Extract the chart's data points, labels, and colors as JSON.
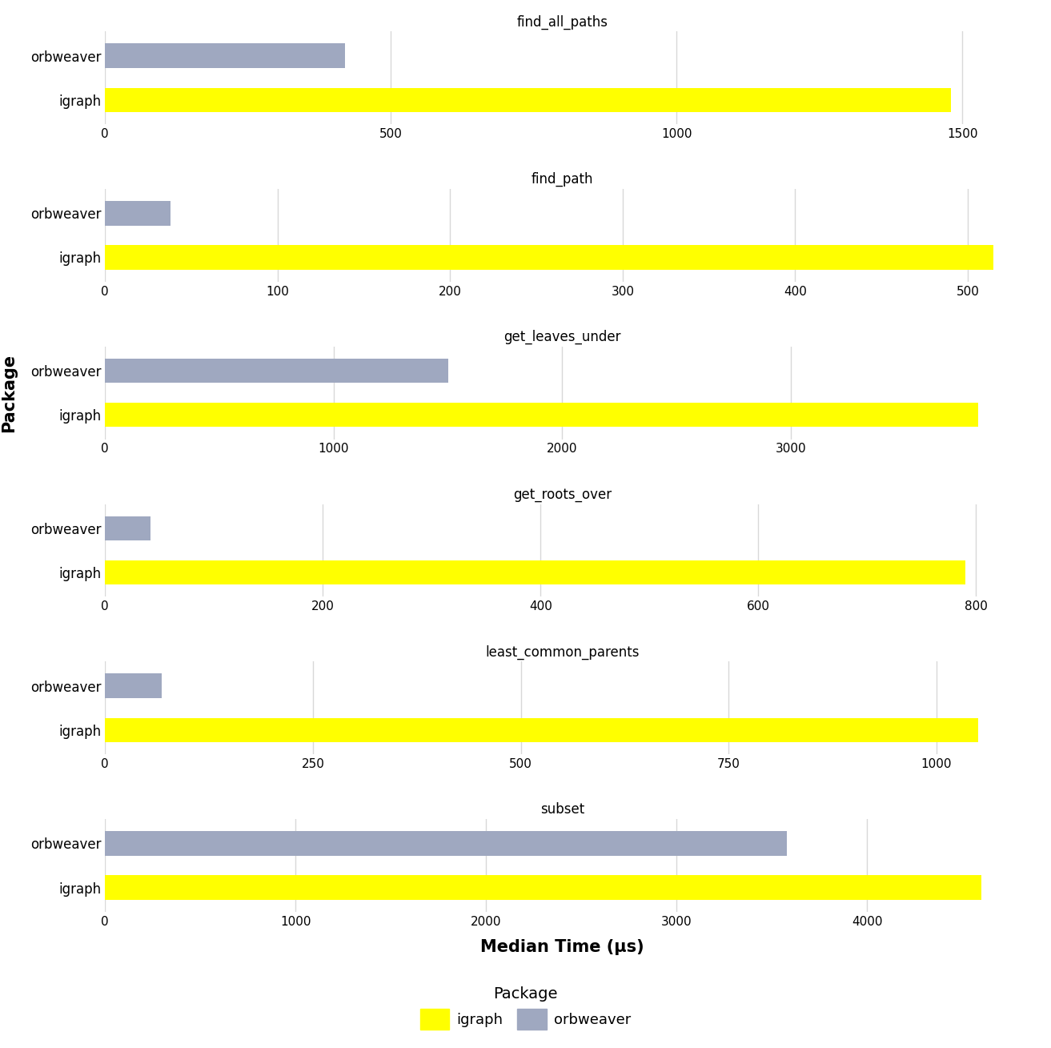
{
  "subplots": [
    {
      "title": "find_all_paths",
      "igraph_val": 1480,
      "orbweaver_val": 420,
      "xlim": [
        0,
        1600
      ],
      "xticks": [
        0,
        500,
        1000,
        1500
      ],
      "xticklabels": [
        "0",
        "500",
        "1000",
        "1500"
      ]
    },
    {
      "title": "find_path",
      "igraph_val": 515,
      "orbweaver_val": 38,
      "xlim": [
        0,
        530
      ],
      "xticks": [
        0,
        100,
        200,
        300,
        400,
        500
      ],
      "xticklabels": [
        "0",
        "100",
        "200",
        "300",
        "400",
        "500"
      ]
    },
    {
      "title": "get_leaves_under",
      "igraph_val": 3820,
      "orbweaver_val": 1500,
      "xlim": [
        0,
        4000
      ],
      "xticks": [
        0,
        1000,
        2000,
        3000
      ],
      "xticklabels": [
        "0",
        "1000",
        "2000",
        "3000"
      ]
    },
    {
      "title": "get_roots_over",
      "igraph_val": 790,
      "orbweaver_val": 42,
      "xlim": [
        0,
        840
      ],
      "xticks": [
        0,
        200,
        400,
        600,
        800
      ],
      "xticklabels": [
        "0",
        "200",
        "400",
        "600",
        "800"
      ]
    },
    {
      "title": "least_common_parents",
      "igraph_val": 1050,
      "orbweaver_val": 68,
      "xlim": [
        0,
        1100
      ],
      "xticks": [
        0,
        250,
        500,
        750,
        1000
      ],
      "xticklabels": [
        "0",
        "250",
        "500",
        "750",
        "1000"
      ]
    },
    {
      "title": "subset",
      "igraph_val": 4600,
      "orbweaver_val": 3580,
      "xlim": [
        0,
        4800
      ],
      "xticks": [
        0,
        1000,
        2000,
        3000,
        4000
      ],
      "xticklabels": [
        "0",
        "1000",
        "2000",
        "3000",
        "4000"
      ]
    }
  ],
  "igraph_color": "#FFFF00",
  "orbweaver_color": "#9FA8C0",
  "ylabel": "Package",
  "xlabel": "Median Time (μs)",
  "background_color": "#FFFFFF",
  "grid_color": "#D8D8D8",
  "title_fontsize": 12,
  "axis_label_fontsize": 13,
  "tick_fontsize": 11,
  "ytick_fontsize": 12,
  "legend_fontsize": 13,
  "legend_title_fontsize": 14,
  "bar_height": 0.55
}
